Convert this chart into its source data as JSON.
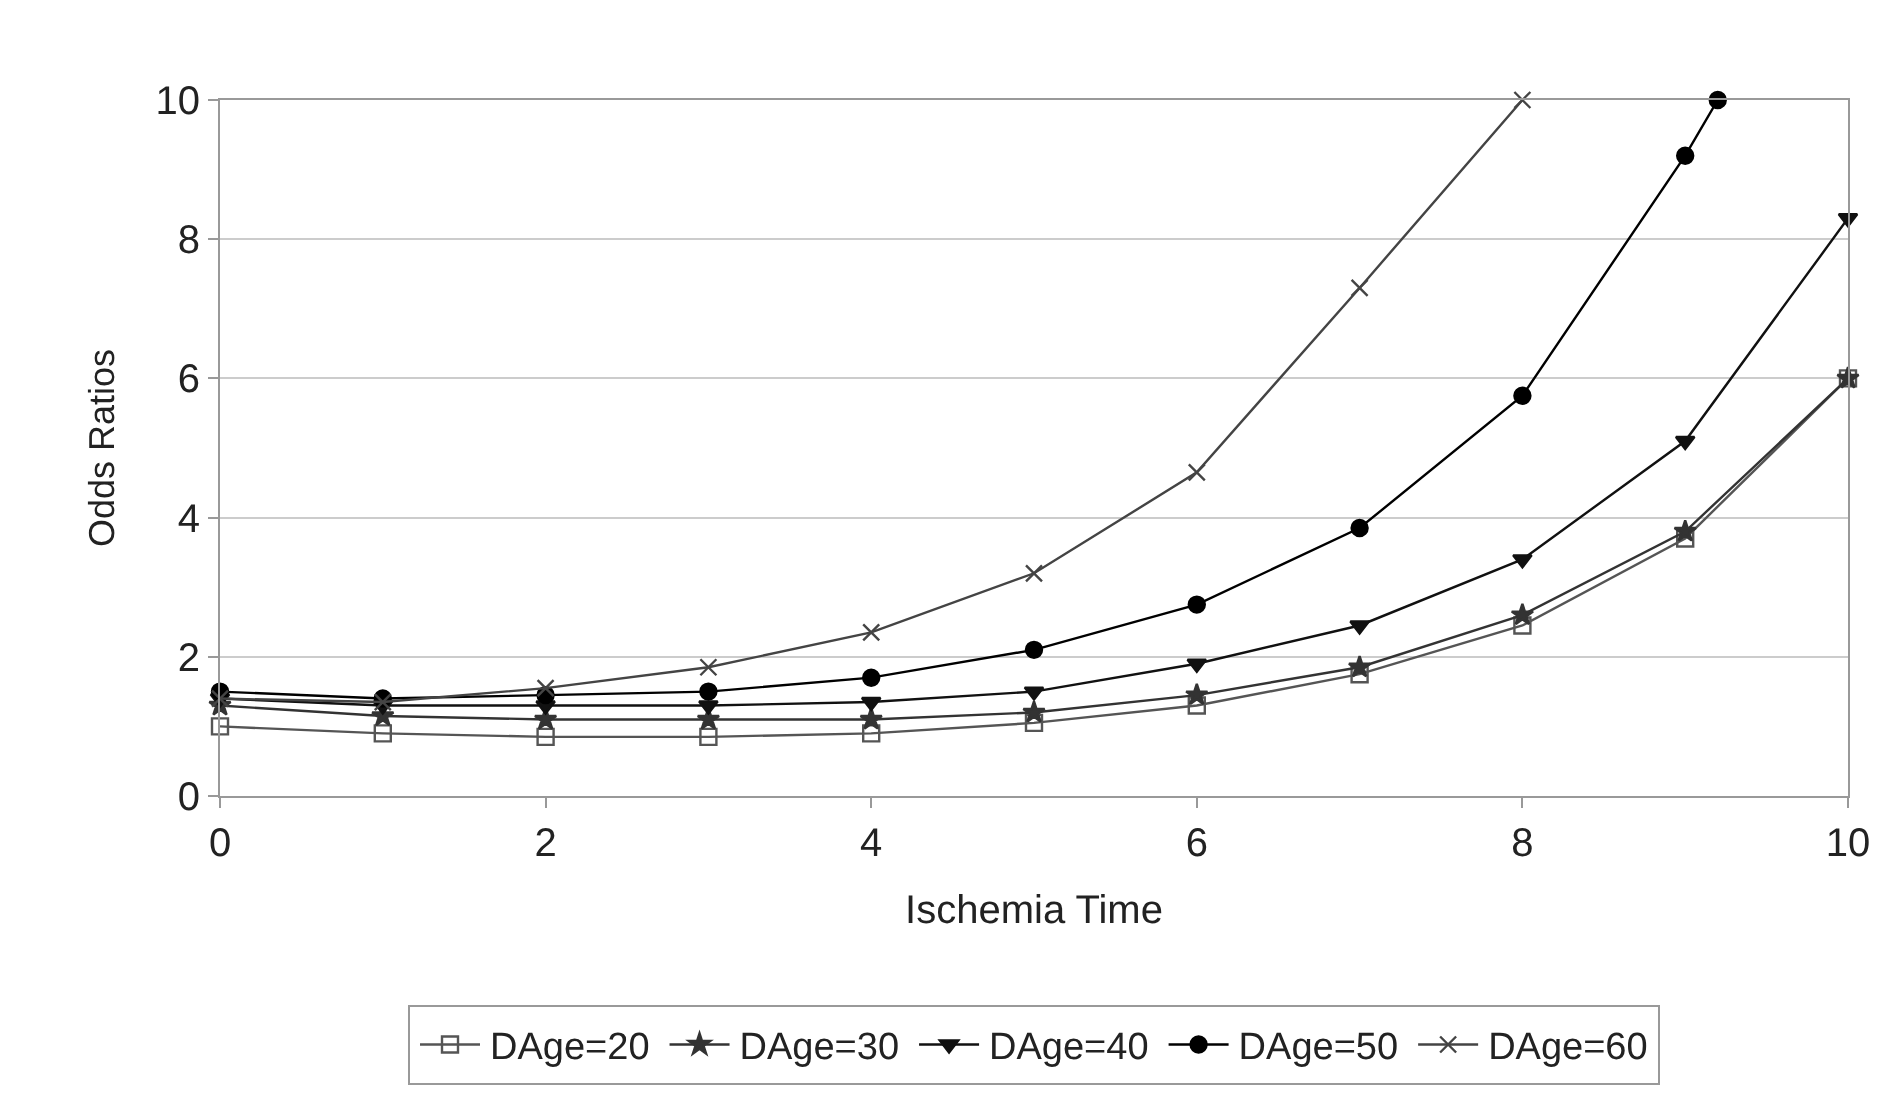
{
  "chart_data": {
    "type": "line",
    "xlabel": "Ischemia Time",
    "ylabel": "Odds Ratios",
    "xlim": [
      0,
      10
    ],
    "xticks": [
      0,
      2,
      4,
      6,
      8,
      10
    ],
    "ylim": [
      0,
      10
    ],
    "yticks": [
      0,
      2,
      4,
      6,
      8,
      10
    ],
    "grid": "y",
    "legend": "bottom",
    "line_style": "solid",
    "series": [
      {
        "name": "DAge=20",
        "color": "#555555",
        "marker": "square",
        "x": [
          0,
          1,
          2,
          3,
          4,
          5,
          6,
          7,
          8,
          9,
          10
        ],
        "values": [
          1.0,
          0.9,
          0.85,
          0.85,
          0.9,
          1.05,
          1.3,
          1.75,
          2.45,
          3.7,
          6.0
        ]
      },
      {
        "name": "DAge=30",
        "color": "#333333",
        "marker": "star",
        "x": [
          0,
          1,
          2,
          3,
          4,
          5,
          6,
          7,
          8,
          9,
          10
        ],
        "values": [
          1.3,
          1.15,
          1.1,
          1.1,
          1.1,
          1.2,
          1.45,
          1.85,
          2.6,
          3.8,
          6.0
        ]
      },
      {
        "name": "DAge=40",
        "color": "#111111",
        "marker": "triangle",
        "x": [
          0,
          1,
          2,
          3,
          4,
          5,
          6,
          7,
          8,
          9,
          10
        ],
        "values": [
          1.4,
          1.3,
          1.3,
          1.3,
          1.35,
          1.5,
          1.9,
          2.45,
          3.4,
          5.1,
          8.3
        ]
      },
      {
        "name": "DAge=50",
        "color": "#000000",
        "marker": "circle",
        "x": [
          0,
          1,
          2,
          3,
          4,
          5,
          6,
          7,
          8,
          9,
          9.2
        ],
        "values": [
          1.5,
          1.4,
          1.45,
          1.5,
          1.7,
          2.1,
          2.75,
          3.85,
          5.75,
          9.2,
          10
        ]
      },
      {
        "name": "DAge=60",
        "color": "#444444",
        "marker": "cross",
        "x": [
          0,
          1,
          2,
          3,
          4,
          5,
          6,
          7,
          8
        ],
        "values": [
          1.4,
          1.35,
          1.55,
          1.85,
          2.35,
          3.2,
          4.65,
          7.3,
          10
        ]
      }
    ]
  }
}
